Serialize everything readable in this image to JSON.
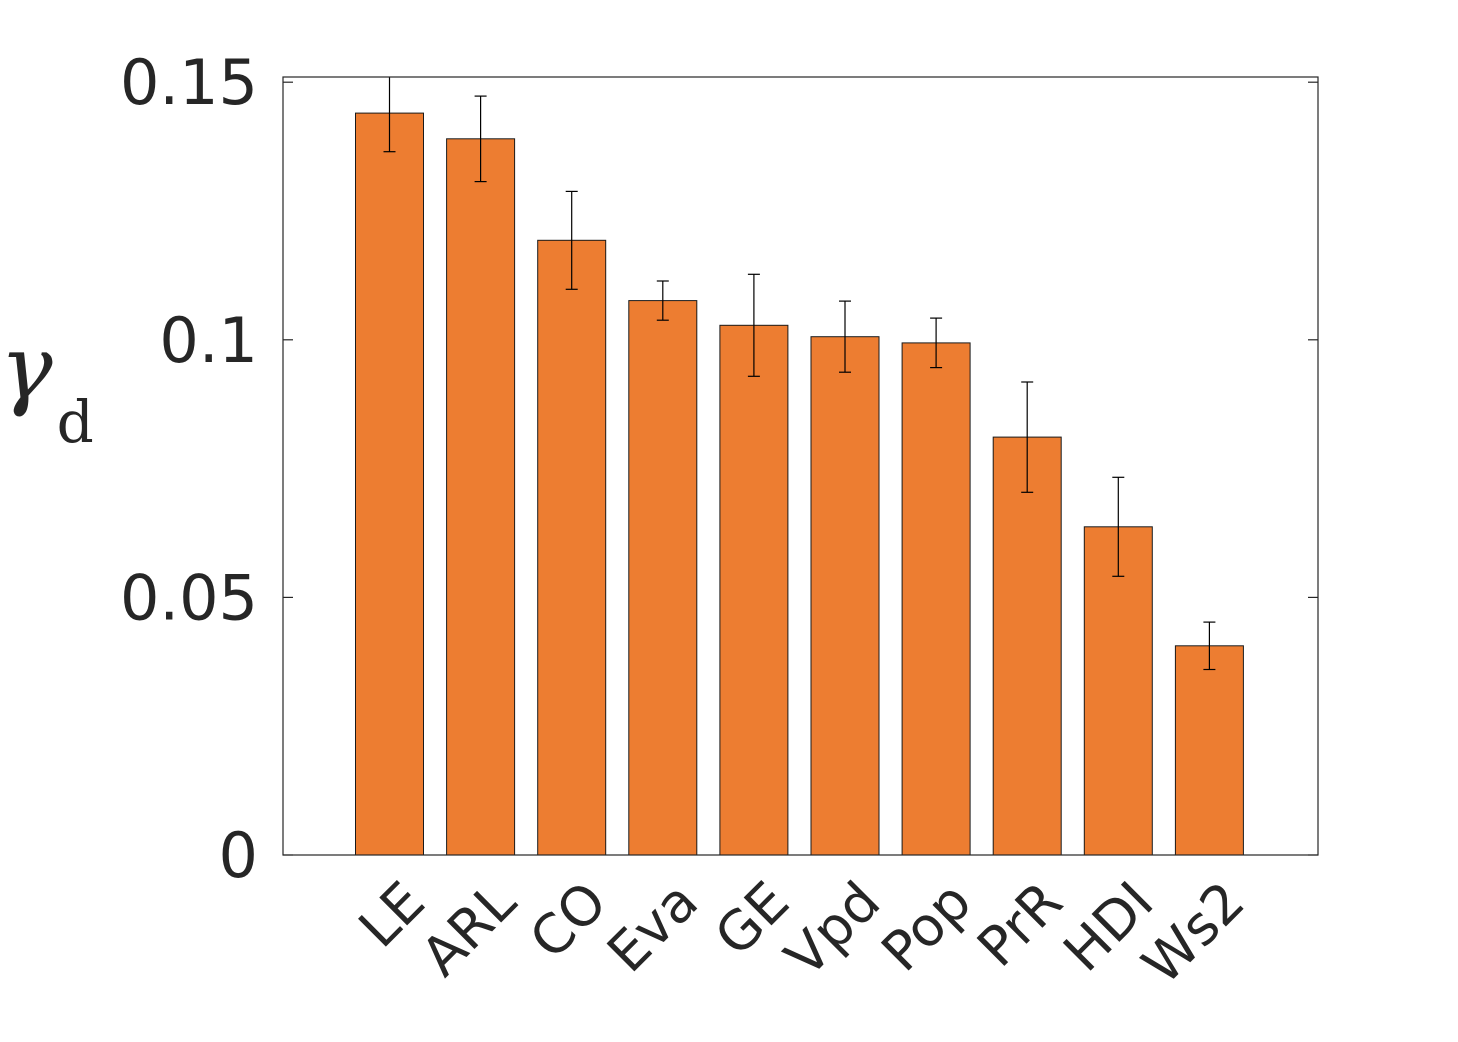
{
  "chart_data": {
    "type": "bar",
    "categories": [
      "LE",
      "ARL",
      "CO",
      "Eva",
      "GE",
      "Vpd",
      "Pop",
      "PrR",
      "HDI",
      "Ws2"
    ],
    "values": [
      0.144,
      0.139,
      0.1193,
      0.1076,
      0.1028,
      0.1006,
      0.0994,
      0.0811,
      0.0637,
      0.0406
    ],
    "errors": [
      0.0075,
      0.0083,
      0.0095,
      0.0038,
      0.0099,
      0.0069,
      0.0048,
      0.0107,
      0.0096,
      0.0046
    ],
    "title": "",
    "xlabel": "",
    "ylabel": "γ",
    "ylabel_subscript": "d",
    "ylim": [
      0,
      0.151
    ],
    "yticks": [
      0,
      0.05,
      0.1,
      0.15
    ],
    "ytick_labels": [
      "0",
      "0.05",
      "0.1",
      "0.15"
    ],
    "bar_color": "#ED7D31",
    "grid": false,
    "legend": "none"
  }
}
